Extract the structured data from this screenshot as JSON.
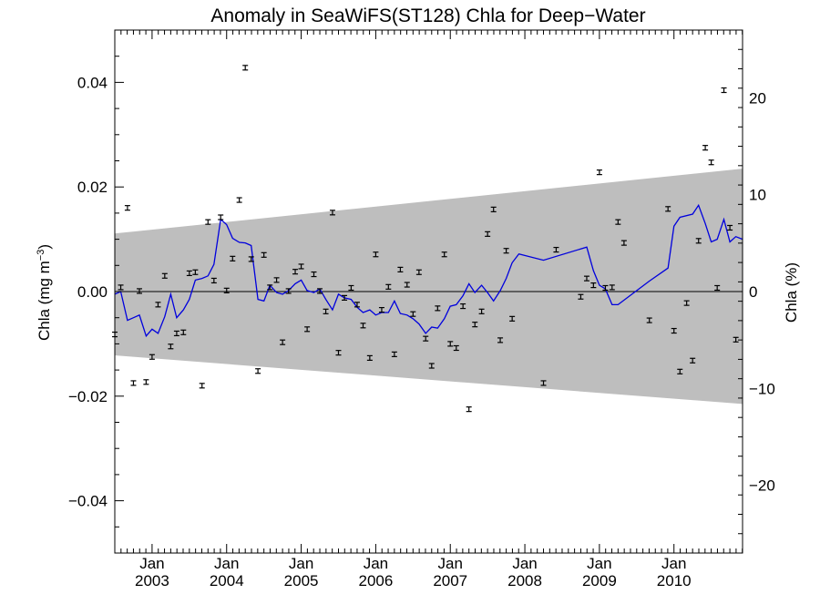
{
  "chart_data": {
    "type": "line",
    "title": "Anomaly in SeaWiFS(ST128) Chla for Deep−Water",
    "ylabel_left": "Chla (mg m",
    "ylabel_left_sup": "−3",
    "ylabel_left_close": ")",
    "ylabel_right": "Chla (%)",
    "xlim": [
      2002.5,
      2010.92
    ],
    "ylim_left": [
      -0.05,
      0.05
    ],
    "ylim_right": [
      -27,
      27
    ],
    "x_month_labels": [
      "Jan",
      "Jan",
      "Jan",
      "Jan",
      "Jan",
      "Jan",
      "Jan",
      "Jan"
    ],
    "x_year_labels": [
      "2003",
      "2004",
      "2005",
      "2006",
      "2007",
      "2008",
      "2009",
      "2010"
    ],
    "x_year_positions": [
      2003,
      2004,
      2005,
      2006,
      2007,
      2008,
      2009,
      2010
    ],
    "y_left_ticks": [
      {
        "value": 0.04,
        "label": "0.04"
      },
      {
        "value": 0.02,
        "label": "0.02"
      },
      {
        "value": 0.0,
        "label": "0.00"
      },
      {
        "value": -0.02,
        "label": "−0.02"
      },
      {
        "value": -0.04,
        "label": "−0.04"
      }
    ],
    "y_right_ticks": [
      {
        "value": 20,
        "label": "20"
      },
      {
        "value": 10,
        "label": "10"
      },
      {
        "value": 0,
        "label": "0"
      },
      {
        "value": -10,
        "label": "−10"
      },
      {
        "value": -20,
        "label": "−20"
      }
    ],
    "band": {
      "color": "#bebebe",
      "upper_start": 0.0111,
      "upper_end": 0.0235,
      "lower_start": -0.0122,
      "lower_end": -0.0215
    },
    "zero_line": 0.0,
    "series": [
      {
        "color": "#0000dd",
        "x": [
          2002.5,
          2002.58,
          2002.67,
          2002.75,
          2002.83,
          2002.92,
          2003.0,
          2003.08,
          2003.17,
          2003.25,
          2003.33,
          2003.42,
          2003.5,
          2003.58,
          2003.67,
          2003.75,
          2003.83,
          2003.92,
          2004.0,
          2004.08,
          2004.17,
          2004.25,
          2004.33,
          2004.42,
          2004.5,
          2004.58,
          2004.67,
          2004.75,
          2004.83,
          2004.92,
          2005.0,
          2005.08,
          2005.17,
          2005.25,
          2005.33,
          2005.42,
          2005.5,
          2005.58,
          2005.67,
          2005.75,
          2005.83,
          2005.92,
          2006.0,
          2006.08,
          2006.17,
          2006.25,
          2006.33,
          2006.42,
          2006.5,
          2006.58,
          2006.67,
          2006.75,
          2006.83,
          2006.92,
          2007.0,
          2007.08,
          2007.17,
          2007.25,
          2007.33,
          2007.42,
          2007.5,
          2007.58,
          2007.67,
          2007.75,
          2007.83,
          2007.92,
          2008.25,
          2008.83,
          2008.92,
          2009.0,
          2009.08,
          2009.17,
          2009.25,
          2009.67,
          2009.92,
          2010.0,
          2010.08,
          2010.25,
          2010.33,
          2010.42,
          2010.5,
          2010.58,
          2010.67,
          2010.75,
          2010.83,
          2010.92
        ],
        "y": [
          -0.0005,
          0.0,
          -0.0055,
          -0.005,
          -0.0045,
          -0.0085,
          -0.0072,
          -0.008,
          -0.0048,
          -0.0005,
          -0.005,
          -0.0035,
          -0.0015,
          0.0022,
          0.0025,
          0.003,
          0.0052,
          0.0138,
          0.0128,
          0.0102,
          0.0094,
          0.0093,
          0.0088,
          -0.0015,
          -0.0018,
          0.0012,
          -0.0002,
          -0.0005,
          0.0002,
          0.0015,
          0.0022,
          0.0002,
          -0.0002,
          0.0005,
          -0.0015,
          -0.0035,
          -0.0005,
          -0.0012,
          -0.0015,
          -0.003,
          -0.004,
          -0.0035,
          -0.0045,
          -0.004,
          -0.004,
          -0.0018,
          -0.0042,
          -0.0045,
          -0.0052,
          -0.0062,
          -0.008,
          -0.0068,
          -0.007,
          -0.0052,
          -0.0028,
          -0.0025,
          -0.0008,
          0.0015,
          -0.0002,
          0.0012,
          -0.0002,
          -0.0018,
          0.0002,
          0.0025,
          0.0055,
          0.0072,
          0.006,
          0.0085,
          0.004,
          0.0012,
          0.0005,
          -0.0025,
          -0.0025,
          0.002,
          0.0045,
          0.0125,
          0.0142,
          0.0148,
          0.0165,
          0.013,
          0.0095,
          0.01,
          0.0138,
          0.0095,
          0.0105,
          0.01
        ]
      }
    ],
    "points": [
      [
        2002.5,
        -0.0082
      ],
      [
        2002.58,
        0.0008
      ],
      [
        2002.67,
        0.016
      ],
      [
        2002.75,
        -0.0175
      ],
      [
        2002.83,
        0.0001
      ],
      [
        2002.92,
        -0.0173
      ],
      [
        2003.0,
        -0.0125
      ],
      [
        2003.08,
        -0.0025
      ],
      [
        2003.17,
        0.003
      ],
      [
        2003.25,
        -0.0105
      ],
      [
        2003.33,
        -0.008
      ],
      [
        2003.42,
        -0.0078
      ],
      [
        2003.5,
        0.0035
      ],
      [
        2003.58,
        0.0037
      ],
      [
        2003.67,
        -0.018
      ],
      [
        2003.75,
        0.0133
      ],
      [
        2003.83,
        0.0021
      ],
      [
        2003.92,
        0.0142
      ],
      [
        2004.0,
        0.0002
      ],
      [
        2004.08,
        0.0063
      ],
      [
        2004.17,
        0.0175
      ],
      [
        2004.25,
        0.0428
      ],
      [
        2004.33,
        0.0062
      ],
      [
        2004.42,
        -0.0152
      ],
      [
        2004.5,
        0.007
      ],
      [
        2004.58,
        0.0008
      ],
      [
        2004.67,
        0.0022
      ],
      [
        2004.75,
        -0.0097
      ],
      [
        2004.83,
        0.0001
      ],
      [
        2004.92,
        0.0038
      ],
      [
        2005.0,
        0.0048
      ],
      [
        2005.08,
        -0.0072
      ],
      [
        2005.17,
        0.0033
      ],
      [
        2005.25,
        0.0001
      ],
      [
        2005.33,
        -0.0038
      ],
      [
        2005.42,
        0.0151
      ],
      [
        2005.5,
        -0.0117
      ],
      [
        2005.58,
        -0.0012
      ],
      [
        2005.67,
        0.0007
      ],
      [
        2005.75,
        -0.0025
      ],
      [
        2005.83,
        -0.0065
      ],
      [
        2005.92,
        -0.0127
      ],
      [
        2006.0,
        0.0071
      ],
      [
        2006.08,
        -0.0035
      ],
      [
        2006.17,
        0.0009
      ],
      [
        2006.25,
        -0.012
      ],
      [
        2006.33,
        0.0042
      ],
      [
        2006.42,
        0.0013
      ],
      [
        2006.5,
        -0.0043
      ],
      [
        2006.58,
        0.0037
      ],
      [
        2006.67,
        -0.009
      ],
      [
        2006.75,
        -0.0142
      ],
      [
        2006.83,
        -0.0032
      ],
      [
        2006.92,
        0.0071
      ],
      [
        2007.0,
        -0.01
      ],
      [
        2007.08,
        -0.0108
      ],
      [
        2007.17,
        -0.0028
      ],
      [
        2007.25,
        -0.0225
      ],
      [
        2007.33,
        -0.0063
      ],
      [
        2007.42,
        -0.0038
      ],
      [
        2007.5,
        0.011
      ],
      [
        2007.58,
        0.0157
      ],
      [
        2007.67,
        -0.0093
      ],
      [
        2007.75,
        0.0078
      ],
      [
        2007.83,
        -0.0052
      ],
      [
        2008.25,
        -0.0175
      ],
      [
        2008.42,
        0.008
      ],
      [
        2008.75,
        -0.001
      ],
      [
        2008.83,
        0.0025
      ],
      [
        2008.92,
        0.0012
      ],
      [
        2009.0,
        0.0228
      ],
      [
        2009.08,
        0.0007
      ],
      [
        2009.17,
        0.0008
      ],
      [
        2009.25,
        0.0133
      ],
      [
        2009.33,
        0.0093
      ],
      [
        2009.67,
        -0.0055
      ],
      [
        2009.92,
        0.0158
      ],
      [
        2010.0,
        -0.0075
      ],
      [
        2010.08,
        -0.0153
      ],
      [
        2010.17,
        -0.0022
      ],
      [
        2010.25,
        -0.0132
      ],
      [
        2010.33,
        0.0097
      ],
      [
        2010.42,
        0.0275
      ],
      [
        2010.5,
        0.0247
      ],
      [
        2010.58,
        0.0007
      ],
      [
        2010.67,
        0.0385
      ],
      [
        2010.75,
        0.0122
      ],
      [
        2010.83,
        -0.0092
      ]
    ]
  }
}
